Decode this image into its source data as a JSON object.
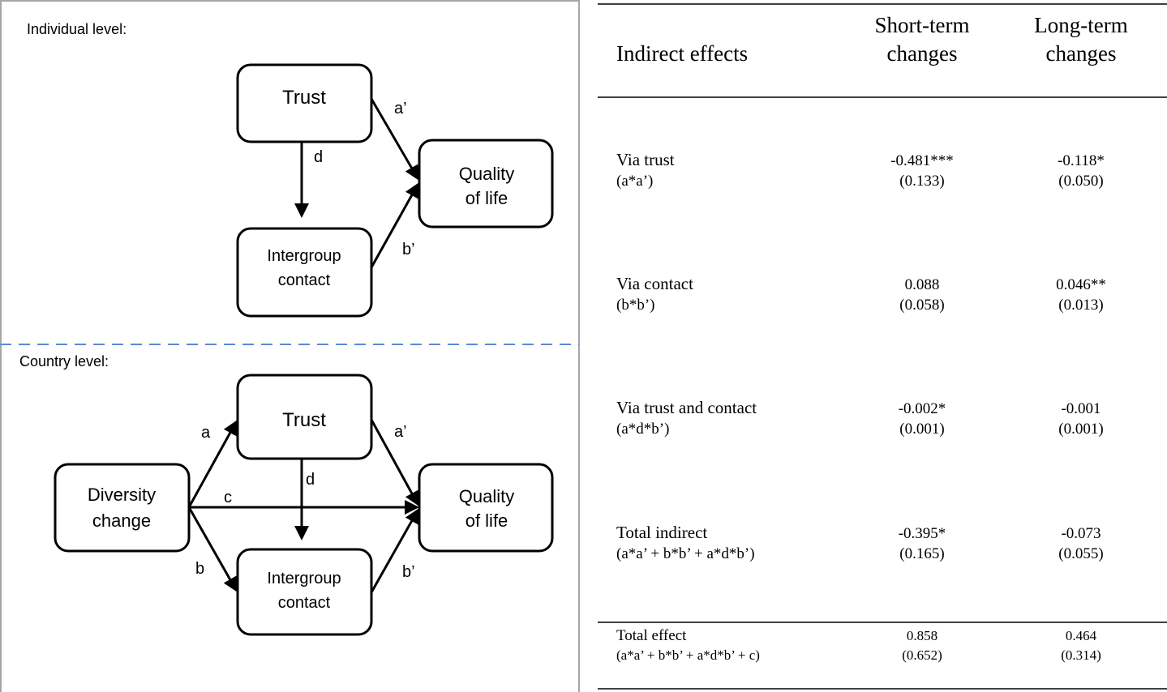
{
  "diagram": {
    "individual_level": {
      "label": "Individual level:",
      "nodes": [
        {
          "lines": [
            "Trust"
          ]
        },
        {
          "lines": [
            "Quality",
            "of life"
          ]
        },
        {
          "lines": [
            "Intergroup",
            "contact"
          ]
        }
      ],
      "edges": [
        "a’",
        "d",
        "b’"
      ]
    },
    "country_level": {
      "label": "Country level:",
      "nodes": [
        {
          "lines": [
            "Trust"
          ]
        },
        {
          "lines": [
            "Quality",
            "of life"
          ]
        },
        {
          "lines": [
            "Intergroup",
            "contact"
          ]
        },
        {
          "lines": [
            "Diversity",
            "change"
          ]
        }
      ],
      "edges": [
        "a",
        "c",
        "b",
        "d",
        "a’",
        "b’"
      ]
    }
  },
  "table": {
    "header": [
      [
        "Indirect effects"
      ],
      [
        "Short-term",
        "changes"
      ],
      [
        "Long-term",
        "changes"
      ]
    ],
    "rows": [
      [
        "Via trust",
        "(a*a’)",
        "-0.481***",
        "(0.133)",
        "-0.118*",
        "(0.050)"
      ],
      [
        "Via contact",
        "(b*b’)",
        "0.088",
        "(0.058)",
        "0.046**",
        "(0.013)"
      ],
      [
        "Via trust and contact",
        "(a*d*b’)",
        "-0.002*",
        "(0.001)",
        "-0.001",
        "(0.001)"
      ],
      [
        "Total indirect",
        "(a*a’ + b*b’ + a*d*b’)",
        "-0.395*",
        "(0.165)",
        "-0.073",
        "(0.055)"
      ],
      [
        "Total effect",
        "(a*a’ + b*b’ + a*d*b’ + c)",
        "0.858",
        "(0.652)",
        "0.464",
        "(0.314)"
      ]
    ]
  }
}
